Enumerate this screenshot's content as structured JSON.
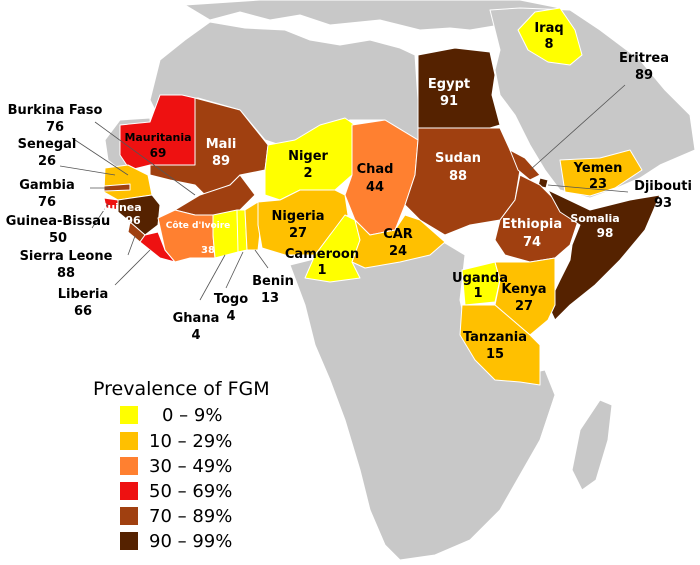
{
  "colors": {
    "land": "#c8c8c8",
    "sea": "#ffffff",
    "border": "#ffffff",
    "bin_0_9": "#ffff00",
    "bin_10_29": "#ffc000",
    "bin_30_49": "#ff8030",
    "bin_50_69": "#ee1111",
    "bin_70_89": "#a04010",
    "bin_90_99": "#552200"
  },
  "countries": {
    "iraq": {
      "name": "Iraq",
      "value": "8"
    },
    "egypt": {
      "name": "Egypt",
      "value": "91"
    },
    "eritrea": {
      "name": "Eritrea",
      "value": "89"
    },
    "mauritania": {
      "name": "Mauritania",
      "value": "69"
    },
    "mali": {
      "name": "Mali",
      "value": "89"
    },
    "niger": {
      "name": "Niger",
      "value": "2"
    },
    "chad": {
      "name": "Chad",
      "value": "44"
    },
    "sudan": {
      "name": "Sudan",
      "value": "88"
    },
    "yemen": {
      "name": "Yemen",
      "value": "23"
    },
    "djibouti": {
      "name": "Djibouti",
      "value": "93"
    },
    "burkina_faso": {
      "name": "Burkina Faso",
      "value": "76"
    },
    "senegal": {
      "name": "Senegal",
      "value": "26"
    },
    "gambia": {
      "name": "Gambia",
      "value": "76"
    },
    "guinea_bissau": {
      "name": "Guinea-Bissau",
      "value": "50"
    },
    "guinea": {
      "name": "Guinea",
      "value": "96"
    },
    "sierra_leone": {
      "name": "Sierra Leone",
      "value": "88"
    },
    "liberia": {
      "name": "Liberia",
      "value": "66"
    },
    "cote_divoire": {
      "name": "Côte d'Ivoire",
      "value": "38"
    },
    "nigeria": {
      "name": "Nigeria",
      "value": "27"
    },
    "car": {
      "name": "CAR",
      "value": "24"
    },
    "ethiopia": {
      "name": "Ethiopia",
      "value": "74"
    },
    "somalia": {
      "name": "Somalia",
      "value": "98"
    },
    "cameroon": {
      "name": "Cameroon",
      "value": "1"
    },
    "benin": {
      "name": "Benin",
      "value": "13"
    },
    "togo": {
      "name": "Togo",
      "value": "4"
    },
    "ghana": {
      "name": "Ghana",
      "value": "4"
    },
    "uganda": {
      "name": "Uganda",
      "value": "1"
    },
    "kenya": {
      "name": "Kenya",
      "value": "27"
    },
    "tanzania": {
      "name": "Tanzania",
      "value": "15"
    }
  },
  "legend": {
    "title": "Prevalence of FGM",
    "items": [
      {
        "label": "0 – 9%"
      },
      {
        "label": "10 – 29%"
      },
      {
        "label": "30 – 49%"
      },
      {
        "label": "50 – 69%"
      },
      {
        "label": "70 – 89%"
      },
      {
        "label": "90 – 99%"
      }
    ]
  }
}
